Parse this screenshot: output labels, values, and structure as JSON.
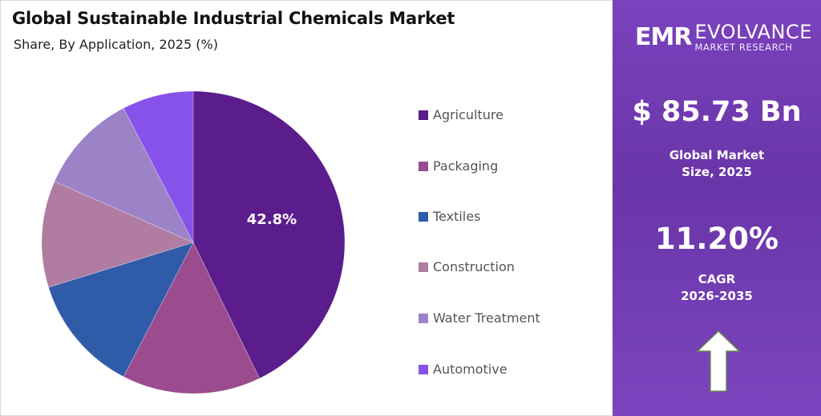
{
  "header": {
    "title": "Global Sustainable Industrial Chemicals Market",
    "subtitle": "Share, By Application, 2025 (%)"
  },
  "chart_data": {
    "type": "pie",
    "title": "Global Sustainable Industrial Chemicals Market",
    "subtitle": "Share, By Application, 2025 (%)",
    "categories": [
      "Agriculture",
      "Packaging",
      "Textiles",
      "Construction",
      "Water Treatment",
      "Automotive"
    ],
    "values": [
      42.8,
      14.8,
      12.6,
      11.4,
      10.8,
      7.6
    ],
    "data_labels": [
      "42.8%",
      "",
      "",
      "",
      "",
      ""
    ],
    "colors": [
      "#5b1c8c",
      "#9a4c8e",
      "#2f5ba8",
      "#b07ca2",
      "#9c82c6",
      "#8752ea"
    ],
    "legend_position": "right",
    "start": "top, clockwise"
  },
  "panel": {
    "brand_mark": "EMR",
    "brand_name": "EVOLVANCE",
    "brand_sub": "MARKET RESEARCH",
    "market_size": "$ 85.73 Bn",
    "market_size_label_1": "Global Market",
    "market_size_label_2": "Size, 2025",
    "cagr": "11.20%",
    "cagr_label_1": "CAGR",
    "cagr_label_2": "2026-2035",
    "arrow_icon": "up-arrow-icon"
  }
}
